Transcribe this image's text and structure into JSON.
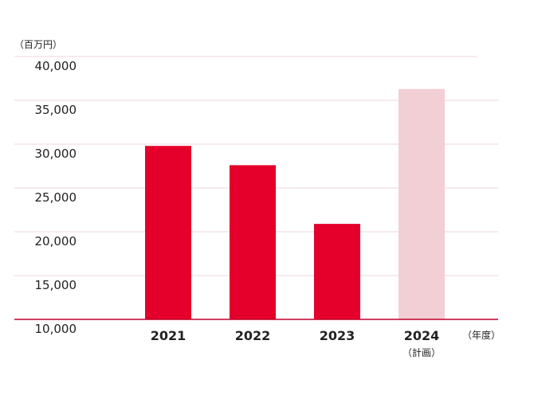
{
  "chart_data": {
    "type": "bar",
    "categories": [
      "2021",
      "2022",
      "2023",
      "2024"
    ],
    "category_sublabels": [
      "",
      "",
      "",
      "（計画）"
    ],
    "values": [
      29800,
      27600,
      20900,
      36300
    ],
    "bar_colors": [
      "#e4002b",
      "#e4002b",
      "#e4002b",
      "#f2cfd5"
    ],
    "ylim": [
      10000,
      40000
    ],
    "yticks": [
      10000,
      15000,
      20000,
      25000,
      30000,
      35000,
      40000
    ],
    "ytick_labels": [
      "10,000",
      "15,000",
      "20,000",
      "25,000",
      "30,000",
      "35,000",
      "40,000"
    ],
    "y_unit_label": "（百万円）",
    "x_unit_label": "（年度）",
    "grid": true,
    "grid_color": "#f0d6dc",
    "axis_color": "#c0002a"
  }
}
